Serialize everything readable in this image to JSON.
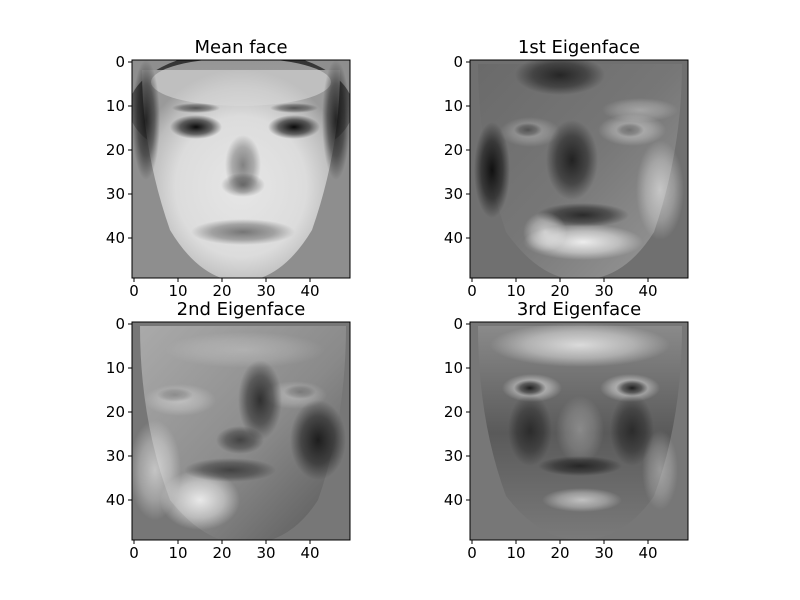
{
  "chart_data": [
    {
      "type": "heatmap",
      "title": "Mean face",
      "colormap": "gray",
      "image_size": [
        50,
        50
      ],
      "xlim": [
        0,
        49
      ],
      "ylim": [
        49,
        0
      ],
      "xticks": [
        "0",
        "10",
        "20",
        "30",
        "40"
      ],
      "yticks": [
        "0",
        "10",
        "20",
        "30",
        "40"
      ]
    },
    {
      "type": "heatmap",
      "title": "1st Eigenface",
      "colormap": "gray",
      "image_size": [
        50,
        50
      ],
      "xlim": [
        0,
        49
      ],
      "ylim": [
        49,
        0
      ],
      "xticks": [
        "0",
        "10",
        "20",
        "30",
        "40"
      ],
      "yticks": [
        "0",
        "10",
        "20",
        "30",
        "40"
      ]
    },
    {
      "type": "heatmap",
      "title": "2nd Eigenface",
      "colormap": "gray",
      "image_size": [
        50,
        50
      ],
      "xlim": [
        0,
        49
      ],
      "ylim": [
        49,
        0
      ],
      "xticks": [
        "0",
        "10",
        "20",
        "30",
        "40"
      ],
      "yticks": [
        "0",
        "10",
        "20",
        "30",
        "40"
      ]
    },
    {
      "type": "heatmap",
      "title": "3rd Eigenface",
      "colormap": "gray",
      "image_size": [
        50,
        50
      ],
      "xlim": [
        0,
        49
      ],
      "ylim": [
        49,
        0
      ],
      "xticks": [
        "0",
        "10",
        "20",
        "30",
        "40"
      ],
      "yticks": [
        "0",
        "10",
        "20",
        "30",
        "40"
      ]
    }
  ]
}
